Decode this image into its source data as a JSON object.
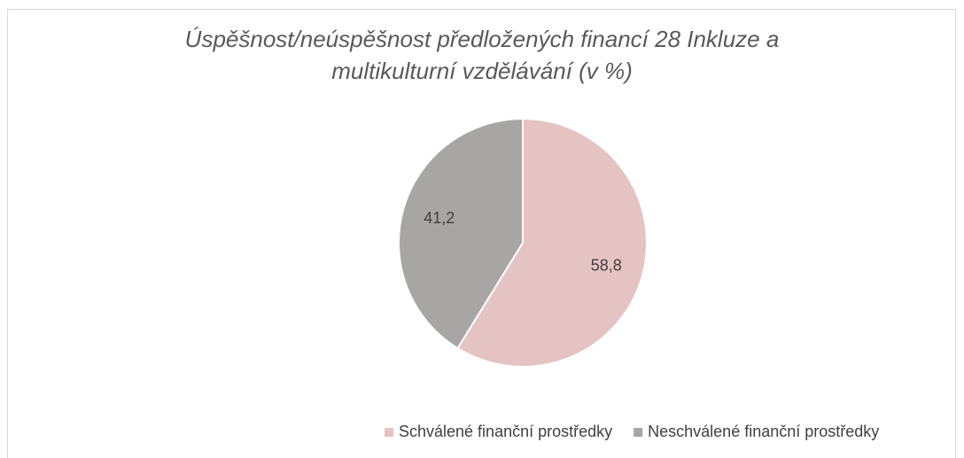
{
  "chart_data": {
    "type": "pie",
    "title": "Úspěšnost/neúspěšnost předložených financí 28 Inkluze a multikulturní vzdělávání (v %)",
    "categories": [
      "Schválené finanční prostředky",
      "Neschválené finanční prostředky"
    ],
    "values": [
      58.8,
      41.2
    ],
    "value_labels": [
      "58,8",
      "41,2"
    ],
    "colors": [
      "#e6c3c3",
      "#a8a5a5"
    ],
    "legend": "bottom"
  }
}
